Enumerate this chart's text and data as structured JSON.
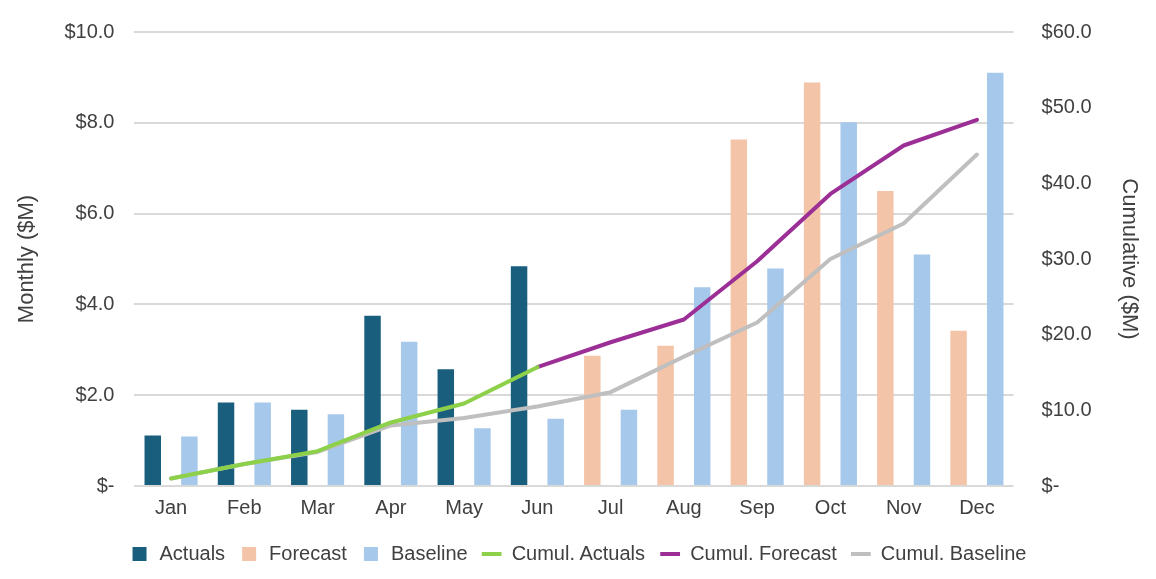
{
  "chart_data": {
    "type": "bar",
    "categories": [
      "Jan",
      "Feb",
      "Mar",
      "Apr",
      "May",
      "Jun",
      "Jul",
      "Aug",
      "Sep",
      "Oct",
      "Nov",
      "Dec"
    ],
    "ylabel": "Monthly ($M)",
    "y2label": "Cumulative ($M)",
    "ylim": [
      0,
      10
    ],
    "yticks": [
      {
        "value": 0,
        "label": "$-"
      },
      {
        "value": 2,
        "label": "$2.0"
      },
      {
        "value": 4,
        "label": "$4.0"
      },
      {
        "value": 6,
        "label": "$6.0"
      },
      {
        "value": 8,
        "label": "$8.0"
      },
      {
        "value": 10,
        "label": "$10.0"
      }
    ],
    "y2lim": [
      0,
      60
    ],
    "y2ticks": [
      {
        "value": 0,
        "label": "$-"
      },
      {
        "value": 10,
        "label": "$10.0"
      },
      {
        "value": 20,
        "label": "$20.0"
      },
      {
        "value": 30,
        "label": "$30.0"
      },
      {
        "value": 40,
        "label": "$40.0"
      },
      {
        "value": 50,
        "label": "$50.0"
      },
      {
        "value": 60,
        "label": "$60.0"
      }
    ],
    "grid": "y",
    "legend": "bottom",
    "line_style": "solid",
    "marker": "none",
    "series": [
      {
        "name": "Actuals",
        "color": "#1a5e7e",
        "values": [
          1.11,
          1.84,
          1.68,
          3.75,
          2.57,
          4.84,
          null,
          null,
          null,
          null,
          null,
          null
        ]
      },
      {
        "name": "Forecast",
        "color": "#f4c4a8",
        "values": [
          null,
          null,
          null,
          null,
          null,
          null,
          2.87,
          3.09,
          7.63,
          8.89,
          6.5,
          3.42
        ]
      },
      {
        "name": "Baseline",
        "color": "#a6c8ea",
        "values": [
          1.09,
          1.84,
          1.58,
          3.18,
          1.27,
          1.48,
          1.68,
          4.38,
          4.79,
          8.01,
          5.1,
          9.1
        ]
      },
      {
        "name": "Cumul. Actuals",
        "type": "line",
        "axis": "y2",
        "color": "#8dd04a",
        "values": [
          1.0,
          2.9,
          4.6,
          8.4,
          10.9,
          15.7,
          null,
          null,
          null,
          null,
          null,
          null
        ]
      },
      {
        "name": "Cumul. Forecast",
        "type": "line",
        "axis": "y2",
        "color": "#9c2f96",
        "values": [
          null,
          null,
          null,
          null,
          null,
          15.7,
          19.0,
          22.0,
          29.7,
          38.6,
          45.0,
          48.4
        ]
      },
      {
        "name": "Cumul. Baseline",
        "type": "line",
        "axis": "y2",
        "color": "#bfbfbf",
        "values": [
          1.0,
          2.9,
          4.5,
          8.0,
          9.0,
          10.5,
          12.4,
          17.1,
          21.6,
          30.0,
          34.7,
          43.8
        ]
      }
    ]
  }
}
